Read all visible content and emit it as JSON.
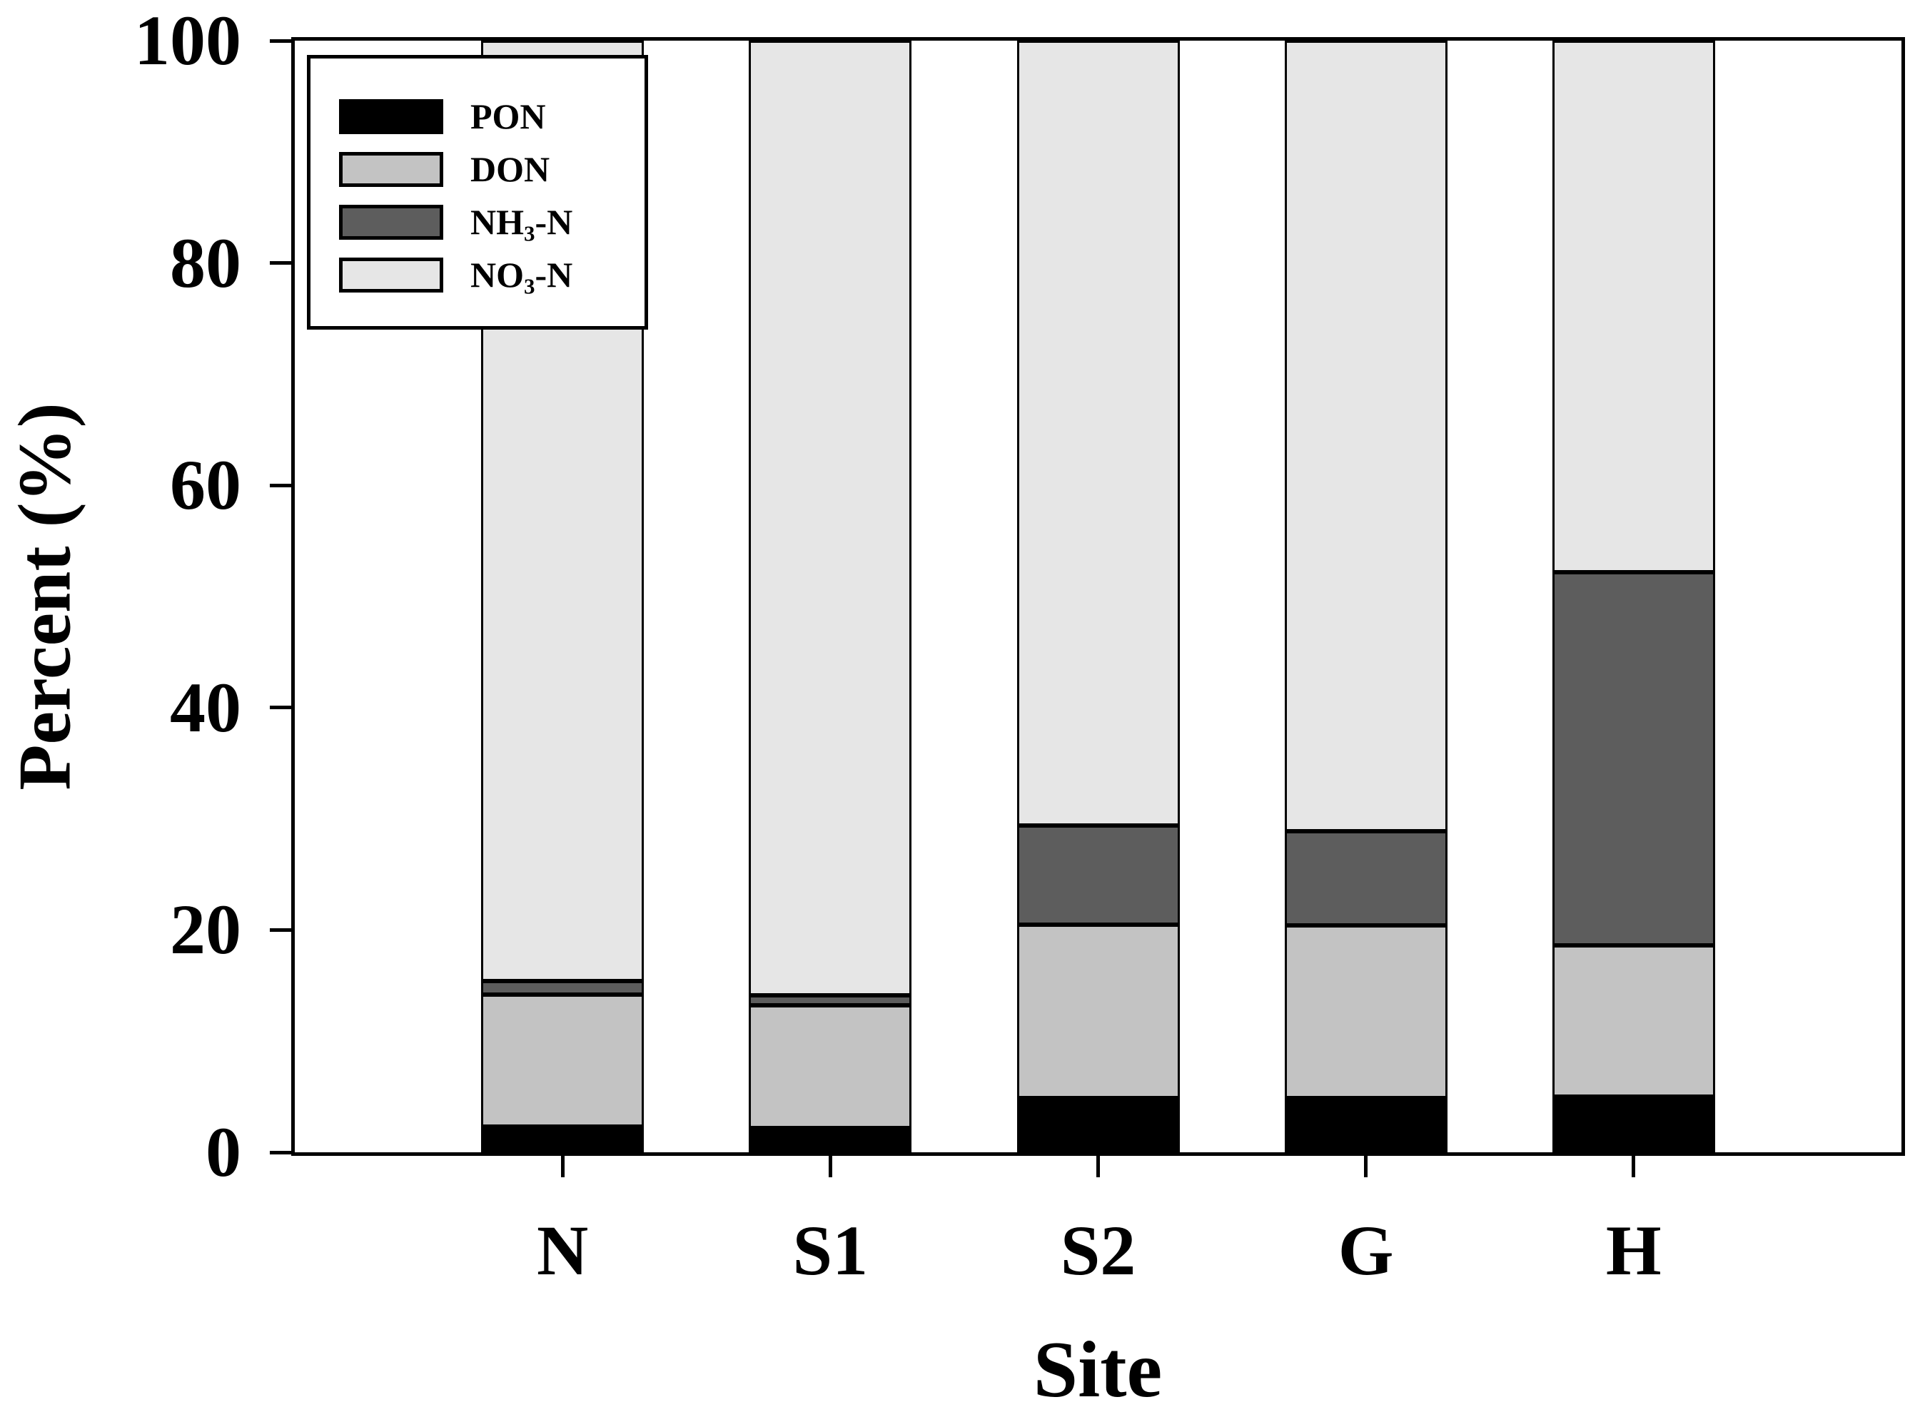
{
  "figure": {
    "background": "#ffffff",
    "frame_color": "#000000"
  },
  "y_axis": {
    "title": "Percent (%)",
    "ticks": [
      "0",
      "20",
      "40",
      "60",
      "80",
      "100"
    ],
    "range": [
      0,
      100
    ]
  },
  "x_axis": {
    "title": "Site",
    "categories": [
      "N",
      "S1",
      "S2",
      "G",
      "H"
    ]
  },
  "legend": {
    "items": [
      {
        "key": "PON",
        "pre": "PON",
        "sub": "",
        "post": "",
        "color": "#000000"
      },
      {
        "key": "DON",
        "pre": "DON",
        "sub": "",
        "post": "",
        "color": "#c3c3c3"
      },
      {
        "key": "NH3-N",
        "pre": "NH",
        "sub": "3",
        "post": "-N",
        "color": "#5d5d5d"
      },
      {
        "key": "NO3-N",
        "pre": "NO",
        "sub": "3",
        "post": "-N",
        "color": "#e6e6e6"
      }
    ]
  },
  "chart_data": {
    "type": "bar",
    "stacked": true,
    "orientation": "vertical",
    "categories": [
      "N",
      "S1",
      "S2",
      "G",
      "H"
    ],
    "series": [
      {
        "name": "PON",
        "color": "#000000",
        "values": [
          2.3,
          2.2,
          4.9,
          4.9,
          5.0
        ]
      },
      {
        "name": "DON",
        "color": "#c3c3c3",
        "values": [
          11.9,
          11.0,
          15.6,
          15.5,
          13.6
        ]
      },
      {
        "name": "NH3-N",
        "color": "#5d5d5d",
        "values": [
          1.2,
          0.9,
          8.9,
          8.5,
          33.6
        ]
      },
      {
        "name": "NO3-N",
        "color": "#e6e6e6",
        "values": [
          84.6,
          85.9,
          70.6,
          71.1,
          47.8
        ]
      }
    ],
    "title": "",
    "xlabel": "Site",
    "ylabel": "Percent (%)",
    "ylim": [
      0,
      100
    ],
    "grid": false,
    "legend_position": "upper-left",
    "segment_border_color": "#000000"
  }
}
